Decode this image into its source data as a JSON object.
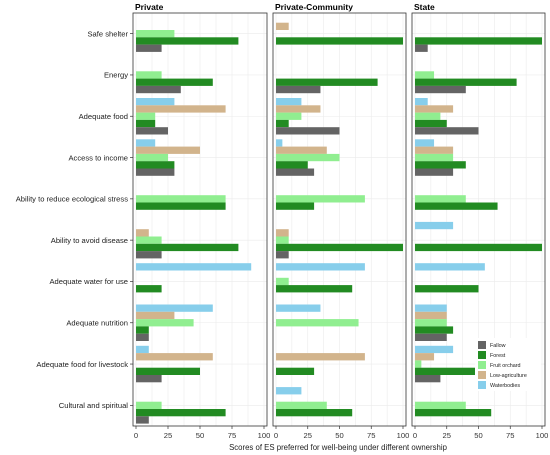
{
  "chart_data": {
    "type": "bar",
    "orientation": "horizontal",
    "xlabel": "Scores of ES preferred for well-being under different ownership",
    "xlim": [
      0,
      100
    ],
    "xticks": [
      0,
      25,
      50,
      75,
      100
    ],
    "grid": true,
    "legend_position": "bottom-right",
    "facets": [
      "Private",
      "Private-Community",
      "State"
    ],
    "categories": [
      "Safe shelter",
      "Energy",
      "Adequate food",
      "Access to income",
      "Ability to reduce ecological stress",
      "Ability to avoid disease",
      "Adequate water for use",
      "Adequate nutrition",
      "Adequate food for livestock",
      "Cultural and spiritual"
    ],
    "series": [
      {
        "name": "Waterbodies",
        "color": "#87CEEB",
        "values": {
          "Private": [
            0,
            0,
            30,
            15,
            0,
            0,
            90,
            60,
            10,
            0
          ],
          "Private-Community": [
            0,
            0,
            20,
            5,
            0,
            0,
            70,
            35,
            0,
            20
          ],
          "State": [
            0,
            0,
            10,
            15,
            0,
            30,
            55,
            25,
            30,
            0
          ]
        }
      },
      {
        "name": "Low-agriculture",
        "color": "#D2B48C",
        "values": {
          "Private": [
            0,
            0,
            70,
            50,
            0,
            10,
            0,
            30,
            60,
            0
          ],
          "Private-Community": [
            10,
            0,
            35,
            40,
            0,
            10,
            0,
            0,
            70,
            0
          ],
          "State": [
            0,
            0,
            30,
            30,
            0,
            0,
            0,
            25,
            15,
            0
          ]
        }
      },
      {
        "name": "Fruit orchard",
        "color": "#90EE90",
        "values": {
          "Private": [
            30,
            20,
            15,
            25,
            70,
            20,
            0,
            45,
            0,
            20
          ],
          "Private-Community": [
            0,
            0,
            20,
            50,
            70,
            10,
            10,
            65,
            0,
            40
          ],
          "State": [
            0,
            15,
            20,
            30,
            40,
            0,
            0,
            25,
            5,
            40
          ]
        }
      },
      {
        "name": "Forest",
        "color": "#228B22",
        "values": {
          "Private": [
            80,
            60,
            15,
            30,
            70,
            80,
            20,
            10,
            50,
            70
          ],
          "Private-Community": [
            100,
            80,
            10,
            25,
            30,
            100,
            60,
            0,
            30,
            60
          ],
          "State": [
            100,
            80,
            25,
            40,
            65,
            100,
            50,
            30,
            50,
            60
          ]
        }
      },
      {
        "name": "Fallow",
        "color": "#646464",
        "values": {
          "Private": [
            20,
            35,
            25,
            30,
            0,
            20,
            0,
            10,
            20,
            10
          ],
          "Private-Community": [
            0,
            35,
            50,
            30,
            0,
            10,
            0,
            0,
            0,
            0
          ],
          "State": [
            10,
            40,
            50,
            30,
            0,
            0,
            0,
            25,
            20,
            0
          ]
        }
      }
    ],
    "legend_order": [
      "Fallow",
      "Forest",
      "Fruit orchard",
      "Low-agriculture",
      "Waterbodies"
    ]
  }
}
